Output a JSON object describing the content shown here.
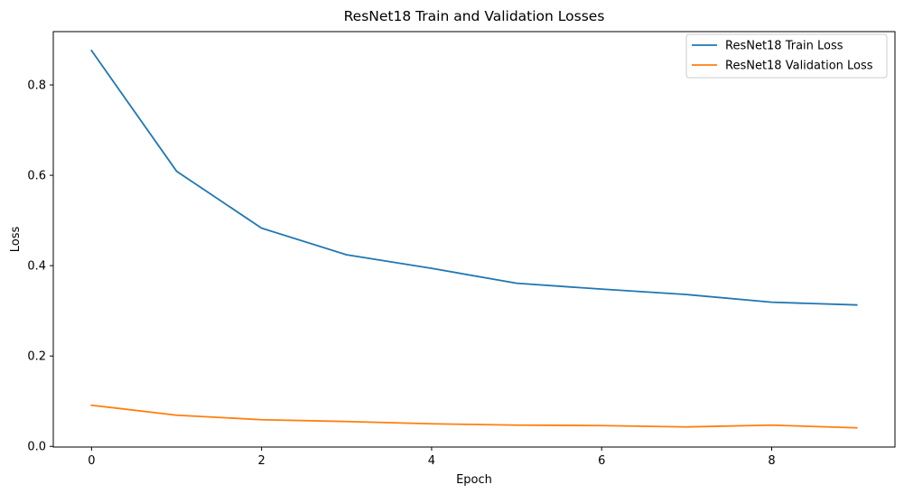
{
  "chart_data": {
    "type": "line",
    "title": "ResNet18 Train and Validation Losses",
    "xlabel": "Epoch",
    "ylabel": "Loss",
    "x": [
      0,
      1,
      2,
      3,
      4,
      5,
      6,
      7,
      8,
      9
    ],
    "xlim": [
      -0.45,
      9.45
    ],
    "ylim": [
      -0.0015,
      0.918
    ],
    "xticks": [
      0,
      2,
      4,
      6,
      8
    ],
    "yticks": [
      0.0,
      0.2,
      0.4,
      0.6,
      0.8
    ],
    "xtick_labels": [
      "0",
      "2",
      "4",
      "6",
      "8"
    ],
    "ytick_labels": [
      "0.0",
      "0.2",
      "0.4",
      "0.6",
      "0.8"
    ],
    "grid": false,
    "legend_position": "top-right",
    "series": [
      {
        "name": "ResNet18 Train Loss",
        "color": "#1f77b4",
        "values": [
          0.876,
          0.609,
          0.483,
          0.424,
          0.394,
          0.361,
          0.348,
          0.336,
          0.319,
          0.313
        ]
      },
      {
        "name": "ResNet18 Validation Loss",
        "color": "#ff7f0e",
        "values": [
          0.091,
          0.069,
          0.059,
          0.055,
          0.05,
          0.047,
          0.046,
          0.043,
          0.047,
          0.041
        ]
      }
    ]
  }
}
